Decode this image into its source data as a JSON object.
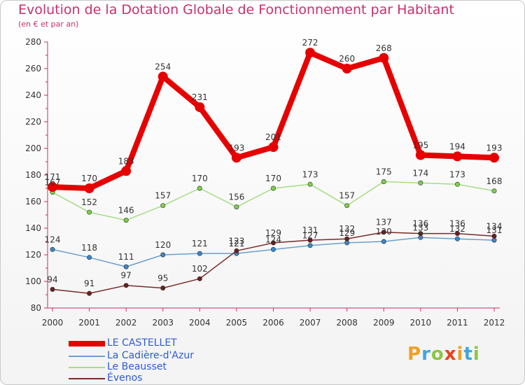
{
  "title": "Evolution de la Dotation Globale de Fonctionnement par Habitant",
  "subtitle": "(en € et par an)",
  "logo": {
    "letters": [
      "P",
      "r",
      "o",
      "x",
      "i",
      "t",
      "i"
    ],
    "colors": [
      "#f0a020",
      "#3fa7e0",
      "#8cc63f",
      "#e8401c",
      "#f0a020",
      "#3fa7e0",
      "#8cc63f"
    ]
  },
  "chart_data": {
    "type": "line",
    "title": "Evolution de la Dotation Globale de Fonctionnement par Habitant",
    "subtitle": "(en € et par an)",
    "x": [
      "2000",
      "2001",
      "2002",
      "2003",
      "2004",
      "2005",
      "2006",
      "2007",
      "2008",
      "2009",
      "2010",
      "2011",
      "2012"
    ],
    "yticks": [
      80,
      100,
      120,
      140,
      160,
      180,
      200,
      220,
      240,
      260,
      280
    ],
    "ylim": [
      80,
      280
    ],
    "grid": false,
    "legend_position": "bottom-left",
    "series": [
      {
        "name": "LE CASTELLET",
        "color": "#e60000",
        "marker": "#e60000",
        "width": 8,
        "values": [
          171,
          170,
          183,
          254,
          231,
          193,
          201,
          272,
          260,
          268,
          195,
          194,
          193
        ],
        "labels": [
          "171",
          "170",
          "183",
          "254",
          "231",
          "193",
          "201",
          "272",
          "260",
          "268",
          "195",
          "194",
          "193"
        ]
      },
      {
        "name": "La Cadière-d'Azur",
        "color": "#6a9fcf",
        "marker": "#3b86c8",
        "width": 1.5,
        "values": [
          124,
          118,
          111,
          120,
          121,
          121,
          124,
          127,
          129,
          130,
          133,
          132,
          131
        ],
        "labels": [
          "124",
          "118",
          "111",
          "120",
          "121",
          "121",
          "124",
          "127",
          "129",
          "130",
          "133",
          "132",
          "131"
        ]
      },
      {
        "name": "Le Beausset",
        "color": "#a6dc86",
        "marker": "#7ccf4a",
        "width": 1.5,
        "values": [
          167,
          152,
          146,
          157,
          170,
          156,
          170,
          173,
          157,
          175,
          174,
          173,
          168
        ],
        "labels": [
          "167",
          "152",
          "146",
          "157",
          "170",
          "156",
          "170",
          "173",
          "157",
          "175",
          "174",
          "173",
          "168"
        ]
      },
      {
        "name": "Évenos",
        "color": "#7a2a2a",
        "marker": "#6b1f1f",
        "width": 1.5,
        "values": [
          94,
          91,
          97,
          95,
          102,
          123,
          129,
          131,
          132,
          137,
          136,
          136,
          134
        ],
        "labels": [
          "94",
          "91",
          "97",
          "95",
          "102",
          "123",
          "129",
          "131",
          "132",
          "137",
          "136",
          "136",
          "134"
        ]
      }
    ]
  }
}
